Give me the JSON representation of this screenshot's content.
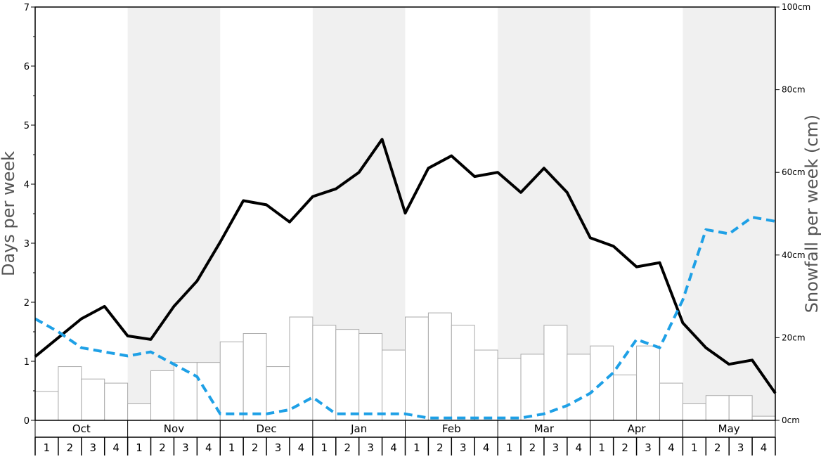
{
  "chart_data": {
    "type": "bar+line",
    "title": "",
    "ylabel_left": "Days per week",
    "ylabel_right": "Snowfall per week (cm)",
    "ylim_left": [
      0,
      7
    ],
    "ylim_right": [
      0,
      100
    ],
    "left_ticks": [
      "0",
      "1",
      "2",
      "3",
      "4",
      "5",
      "6",
      "7"
    ],
    "right_ticks": [
      "0cm",
      "20cm",
      "40cm",
      "60cm",
      "80cm",
      "100cm"
    ],
    "months": [
      "Oct",
      "Nov",
      "Dec",
      "Jan",
      "Feb",
      "Mar",
      "Apr",
      "May"
    ],
    "weeks": [
      "1",
      "2",
      "3",
      "4"
    ],
    "grid": false,
    "colors": {
      "band_shade": "#f0f0f0",
      "bar_fill": "#ffffff",
      "bar_stroke": "#aaaaaa",
      "solid_line": "#000000",
      "dashed_line": "#1ea0e6"
    },
    "snowfall_cm": [
      7,
      13,
      10,
      9,
      4,
      12,
      14,
      14,
      19,
      21,
      13,
      25,
      23,
      22,
      21,
      17,
      25,
      26,
      23,
      17,
      15,
      16,
      23,
      16,
      18,
      11,
      18,
      9,
      4,
      6,
      6,
      1
    ],
    "series": [
      {
        "style": "solid",
        "axis": "left",
        "values": [
          1.08,
          1.4,
          1.72,
          1.93,
          1.43,
          1.37,
          1.93,
          2.36,
          3.02,
          3.72,
          3.65,
          3.36,
          3.79,
          3.92,
          4.2,
          4.76,
          3.51,
          4.27,
          4.48,
          4.13,
          4.2,
          3.86,
          4.27,
          3.86,
          3.09,
          2.95,
          2.6,
          2.67,
          1.65,
          1.23,
          0.95,
          1.02,
          0.46
        ]
      },
      {
        "style": "dashed",
        "axis": "left",
        "values": [
          1.72,
          1.5,
          1.23,
          1.16,
          1.09,
          1.16,
          0.95,
          0.74,
          0.11,
          0.11,
          0.11,
          0.18,
          0.39,
          0.11,
          0.11,
          0.11,
          0.11,
          0.04,
          0.04,
          0.04,
          0.04,
          0.04,
          0.11,
          0.25,
          0.46,
          0.81,
          1.37,
          1.23,
          2.04,
          3.23,
          3.16,
          3.44,
          3.37
        ]
      }
    ]
  }
}
